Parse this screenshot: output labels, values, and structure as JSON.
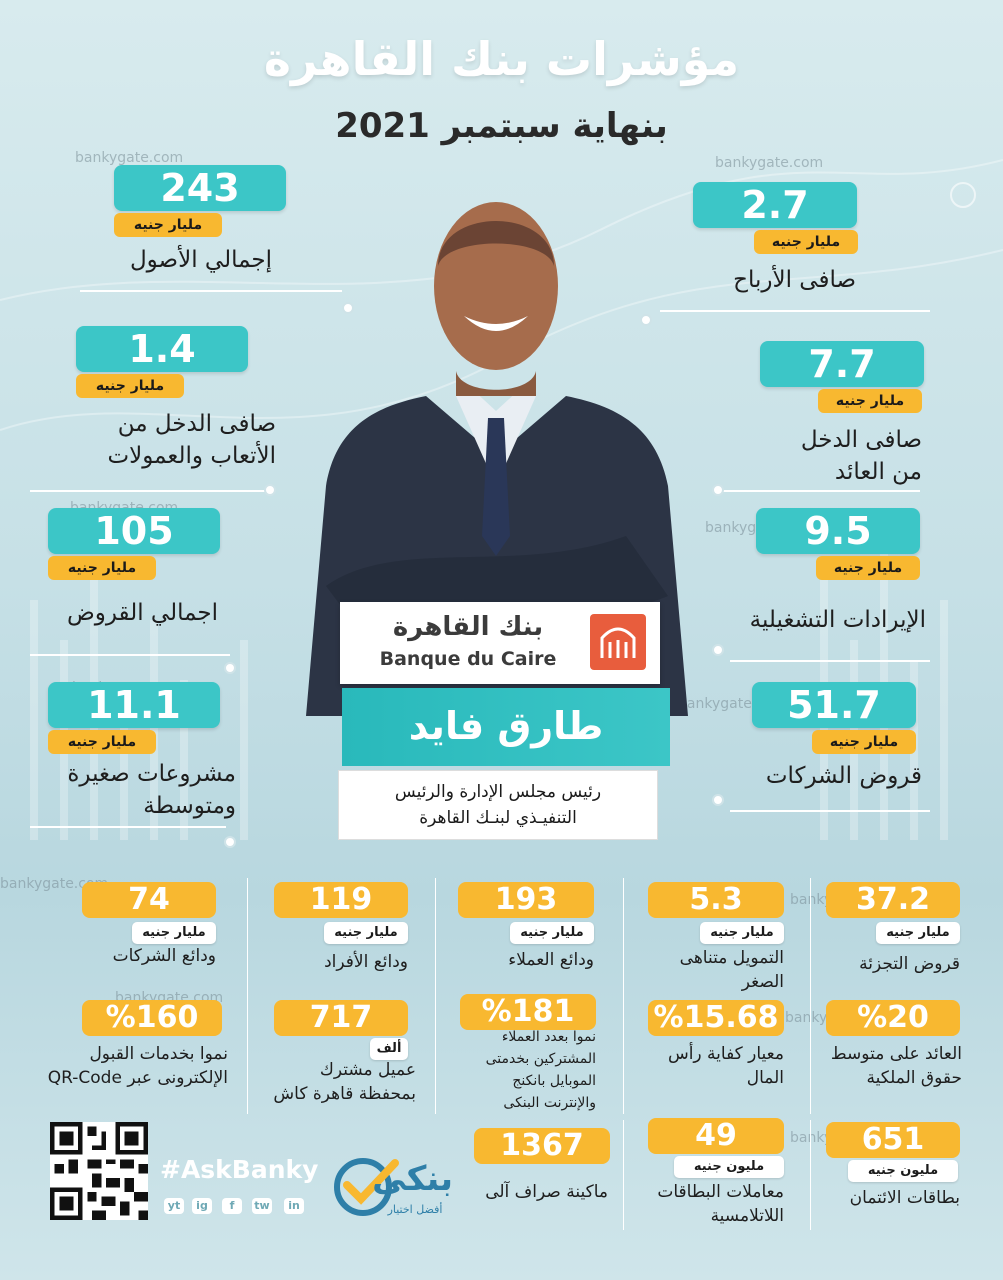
{
  "header": {
    "title": "مؤشرات بنك القاهرة",
    "subtitle": "بنهاية سبتمبر 2021"
  },
  "watermark": "bankygate.com",
  "left_metrics": [
    {
      "value": "243",
      "unit": "مليار جنيه",
      "label": "إجمالي الأصول"
    },
    {
      "value": "1.4",
      "unit": "مليار جنيه",
      "label_line1": "صافى الدخل من",
      "label_line2": "الأتعاب والعمولات"
    },
    {
      "value": "105",
      "unit": "مليار جنيه",
      "label": "اجمالي القروض"
    },
    {
      "value": "11.1",
      "unit": "مليار جنيه",
      "label_line1": "مشروعات صغيرة",
      "label_line2": "ومتوسطة"
    }
  ],
  "right_metrics": [
    {
      "value": "2.7",
      "unit": "مليار جنيه",
      "label": "صافى الأرباح"
    },
    {
      "value": "7.7",
      "unit": "مليار جنيه",
      "label_line1": "صافى الدخل",
      "label_line2": "من العائد"
    },
    {
      "value": "9.5",
      "unit": "مليار جنيه",
      "label": "الإيرادات التشغيلية"
    },
    {
      "value": "51.7",
      "unit": "مليار جنيه",
      "label": "قروض الشركات"
    }
  ],
  "bank": {
    "name_ar": "بنك القاهرة",
    "name_en": "Banque du Caire"
  },
  "person": {
    "name": "طارق فايد",
    "role_line1": "رئيس مجلس الإدارة والرئيس",
    "role_line2": "التنفيـذي لبنـك القاهرة"
  },
  "row1": [
    {
      "value": "37.2",
      "unit": "مليار جنيه",
      "label": "قروض التجزئة"
    },
    {
      "value": "5.3",
      "unit": "مليار جنيه",
      "label_line1": "التمويل متناهى",
      "label_line2": "الصغر"
    },
    {
      "value": "193",
      "unit": "مليار جنيه",
      "label": "ودائع العملاء"
    },
    {
      "value": "119",
      "unit": "مليار جنيه",
      "label": "ودائع الأفراد"
    },
    {
      "value": "74",
      "unit": "مليار جنيه",
      "label": "ودائع الشركات"
    }
  ],
  "row2": [
    {
      "value": "%20",
      "label_line1": "العائد على متوسط",
      "label_line2": "حقوق الملكية"
    },
    {
      "value": "%15.68",
      "label_line1": "معيار كفاية رأس",
      "label_line2": "المال"
    },
    {
      "value": "%181",
      "label_line1": "نموا بعدد العملاء",
      "label_line2": "المشتركين بخدمتى",
      "label_line3": "الموبايل بانكنج",
      "label_line4": "والإنترنت البنكى"
    },
    {
      "value": "717",
      "unit": "ألف",
      "label_line1": "عميل مشترك",
      "label_line2": "بمحفظة قاهرة كاش"
    },
    {
      "value": "%160",
      "label_line1": "نموا بخدمات القبول",
      "label_line2": "الإلكترونى عبر QR-Code"
    }
  ],
  "row3": [
    {
      "value": "651",
      "unit": "مليون جنيه",
      "label": "بطاقات الائتمان"
    },
    {
      "value": "49",
      "unit": "مليون جنيه",
      "label_line1": "معاملات البطاقات",
      "label_line2": "اللاتلامسية"
    },
    {
      "value": "1367",
      "label": "ماكينة صراف آلى"
    }
  ],
  "footer": {
    "hashtag": "#AskBanky",
    "brand_name": "بنكى",
    "brand_slogan": "أفضل اختيار",
    "social": [
      "yt",
      "ig",
      "f",
      "tw",
      "in"
    ]
  },
  "colors": {
    "teal": "#3cc6c7",
    "yellow": "#f8b830",
    "background": "#c6e0e6"
  }
}
